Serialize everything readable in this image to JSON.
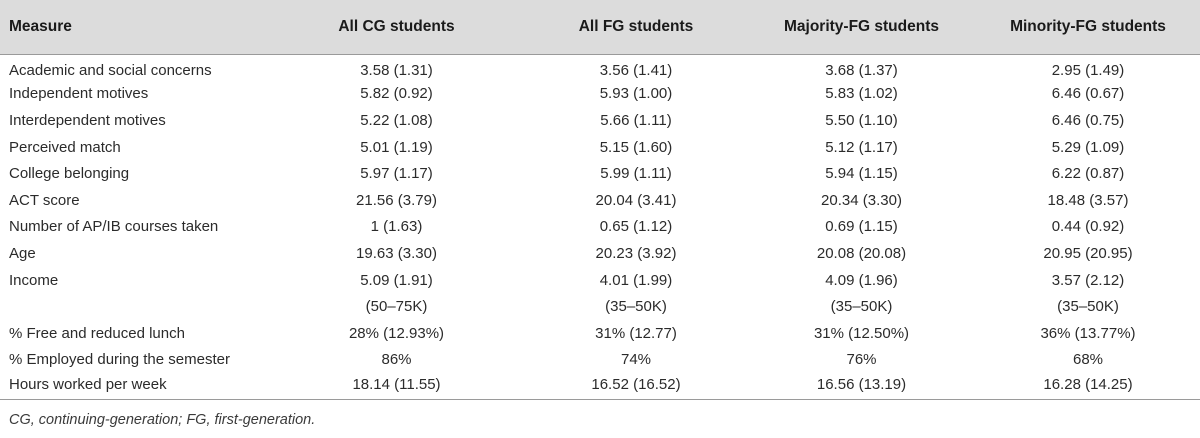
{
  "table": {
    "headers": [
      "Measure",
      "All CG students",
      "All FG students",
      "Majority-FG students",
      "Minority-FG students"
    ],
    "rows": [
      [
        "Academic and social concerns",
        "3.58 (1.31)",
        "3.56 (1.41)",
        "3.68 (1.37)",
        "2.95 (1.49)"
      ],
      [
        "Independent motives",
        "5.82 (0.92)",
        "5.93 (1.00)",
        "5.83 (1.02)",
        "6.46 (0.67)"
      ],
      [
        "Interdependent motives",
        "5.22 (1.08)",
        "5.66 (1.11)",
        "5.50 (1.10)",
        "6.46 (0.75)"
      ],
      [
        "Perceived match",
        "5.01 (1.19)",
        "5.15 (1.60)",
        "5.12 (1.17)",
        "5.29 (1.09)"
      ],
      [
        "College belonging",
        "5.97 (1.17)",
        "5.99 (1.11)",
        "5.94 (1.15)",
        "6.22 (0.87)"
      ],
      [
        "ACT score",
        "21.56 (3.79)",
        "20.04 (3.41)",
        "20.34 (3.30)",
        "18.48 (3.57)"
      ],
      [
        "Number of AP/IB courses taken",
        "1 (1.63)",
        "0.65 (1.12)",
        "0.69 (1.15)",
        "0.44 (0.92)"
      ],
      [
        "Age",
        "19.63 (3.30)",
        "20.23 (3.92)",
        "20.08 (20.08)",
        "20.95 (20.95)"
      ],
      [
        "Income",
        "5.09 (1.91)",
        "4.01 (1.99)",
        "4.09 (1.96)",
        "3.57 (2.12)"
      ],
      [
        "",
        "(50–75K)",
        "(35–50K)",
        "(35–50K)",
        "(35–50K)"
      ],
      [
        "% Free and reduced lunch",
        "28% (12.93%)",
        "31% (12.77)",
        "31% (12.50%)",
        "36% (13.77%)"
      ],
      [
        "% Employed during the semester",
        "86%",
        "74%",
        "76%",
        "68%"
      ],
      [
        "Hours worked per week",
        "18.14 (11.55)",
        "16.52 (16.52)",
        "16.56 (13.19)",
        "16.28 (14.25)"
      ]
    ]
  },
  "footnote": "CG, continuing-generation; FG, first-generation."
}
